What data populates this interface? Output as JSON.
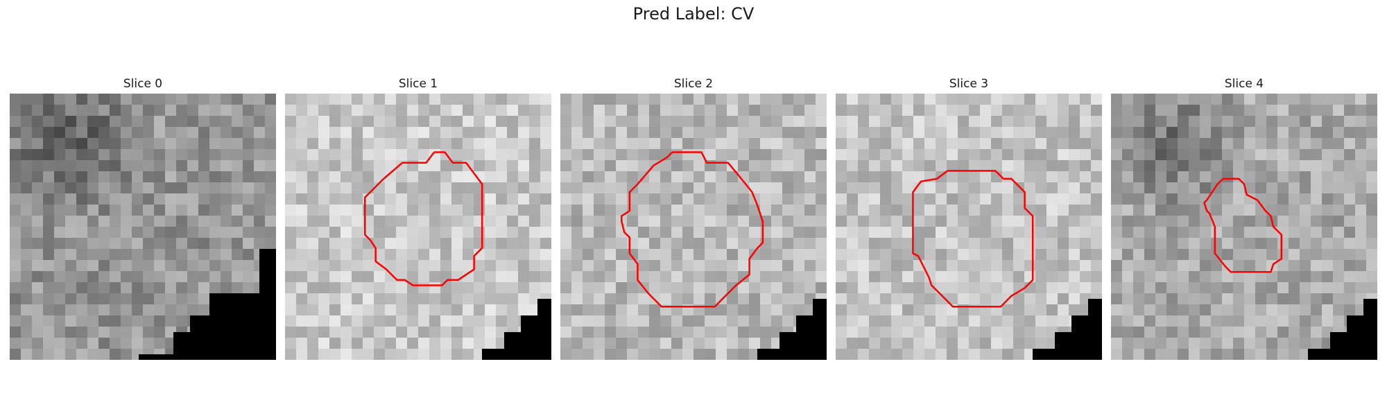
{
  "figure": {
    "title": "Pred Label: CV"
  },
  "panels": [
    {
      "title": "Slice 0",
      "seed": 11,
      "base": 150,
      "dark_blob": true,
      "contour": []
    },
    {
      "title": "Slice 1",
      "seed": 23,
      "base": 200,
      "dark_blob": false,
      "contour": [
        [
          0.56,
          0.22
        ],
        [
          0.6,
          0.22
        ],
        [
          0.63,
          0.26
        ],
        [
          0.68,
          0.26
        ],
        [
          0.74,
          0.34
        ],
        [
          0.74,
          0.58
        ],
        [
          0.71,
          0.61
        ],
        [
          0.71,
          0.66
        ],
        [
          0.68,
          0.68
        ],
        [
          0.65,
          0.7
        ],
        [
          0.61,
          0.7
        ],
        [
          0.59,
          0.72
        ],
        [
          0.48,
          0.72
        ],
        [
          0.45,
          0.7
        ],
        [
          0.42,
          0.7
        ],
        [
          0.38,
          0.66
        ],
        [
          0.34,
          0.63
        ],
        [
          0.34,
          0.58
        ],
        [
          0.32,
          0.55
        ],
        [
          0.3,
          0.53
        ],
        [
          0.3,
          0.39
        ],
        [
          0.32,
          0.37
        ],
        [
          0.37,
          0.32
        ],
        [
          0.44,
          0.26
        ],
        [
          0.53,
          0.26
        ],
        [
          0.56,
          0.22
        ]
      ]
    },
    {
      "title": "Slice 2",
      "seed": 37,
      "base": 185,
      "dark_blob": false,
      "contour": [
        [
          0.42,
          0.22
        ],
        [
          0.53,
          0.22
        ],
        [
          0.55,
          0.26
        ],
        [
          0.63,
          0.26
        ],
        [
          0.68,
          0.32
        ],
        [
          0.72,
          0.37
        ],
        [
          0.74,
          0.42
        ],
        [
          0.76,
          0.48
        ],
        [
          0.76,
          0.56
        ],
        [
          0.74,
          0.58
        ],
        [
          0.71,
          0.62
        ],
        [
          0.71,
          0.68
        ],
        [
          0.66,
          0.72
        ],
        [
          0.62,
          0.76
        ],
        [
          0.58,
          0.8
        ],
        [
          0.38,
          0.8
        ],
        [
          0.33,
          0.75
        ],
        [
          0.29,
          0.7
        ],
        [
          0.29,
          0.64
        ],
        [
          0.26,
          0.6
        ],
        [
          0.26,
          0.54
        ],
        [
          0.24,
          0.52
        ],
        [
          0.23,
          0.48
        ],
        [
          0.23,
          0.46
        ],
        [
          0.26,
          0.44
        ],
        [
          0.26,
          0.37
        ],
        [
          0.29,
          0.34
        ],
        [
          0.35,
          0.27
        ],
        [
          0.4,
          0.24
        ],
        [
          0.42,
          0.22
        ]
      ]
    },
    {
      "title": "Slice 3",
      "seed": 52,
      "base": 195,
      "dark_blob": false,
      "contour": [
        [
          0.42,
          0.29
        ],
        [
          0.6,
          0.29
        ],
        [
          0.63,
          0.32
        ],
        [
          0.66,
          0.32
        ],
        [
          0.71,
          0.37
        ],
        [
          0.71,
          0.43
        ],
        [
          0.74,
          0.46
        ],
        [
          0.74,
          0.7
        ],
        [
          0.71,
          0.73
        ],
        [
          0.66,
          0.76
        ],
        [
          0.62,
          0.8
        ],
        [
          0.44,
          0.8
        ],
        [
          0.4,
          0.76
        ],
        [
          0.36,
          0.72
        ],
        [
          0.35,
          0.69
        ],
        [
          0.33,
          0.65
        ],
        [
          0.31,
          0.61
        ],
        [
          0.29,
          0.6
        ],
        [
          0.29,
          0.37
        ],
        [
          0.32,
          0.33
        ],
        [
          0.38,
          0.32
        ],
        [
          0.42,
          0.29
        ]
      ]
    },
    {
      "title": "Slice 4",
      "seed": 71,
      "base": 170,
      "dark_blob": true,
      "contour": [
        [
          0.42,
          0.32
        ],
        [
          0.48,
          0.32
        ],
        [
          0.5,
          0.34
        ],
        [
          0.51,
          0.38
        ],
        [
          0.55,
          0.4
        ],
        [
          0.58,
          0.44
        ],
        [
          0.6,
          0.46
        ],
        [
          0.61,
          0.5
        ],
        [
          0.64,
          0.53
        ],
        [
          0.64,
          0.62
        ],
        [
          0.61,
          0.64
        ],
        [
          0.6,
          0.67
        ],
        [
          0.45,
          0.67
        ],
        [
          0.43,
          0.65
        ],
        [
          0.39,
          0.6
        ],
        [
          0.39,
          0.5
        ],
        [
          0.37,
          0.45
        ],
        [
          0.36,
          0.44
        ],
        [
          0.35,
          0.41
        ],
        [
          0.36,
          0.4
        ],
        [
          0.4,
          0.34
        ],
        [
          0.42,
          0.32
        ]
      ]
    }
  ],
  "style": {
    "contour_color": "#ff0000",
    "mask_color": "#000000"
  }
}
